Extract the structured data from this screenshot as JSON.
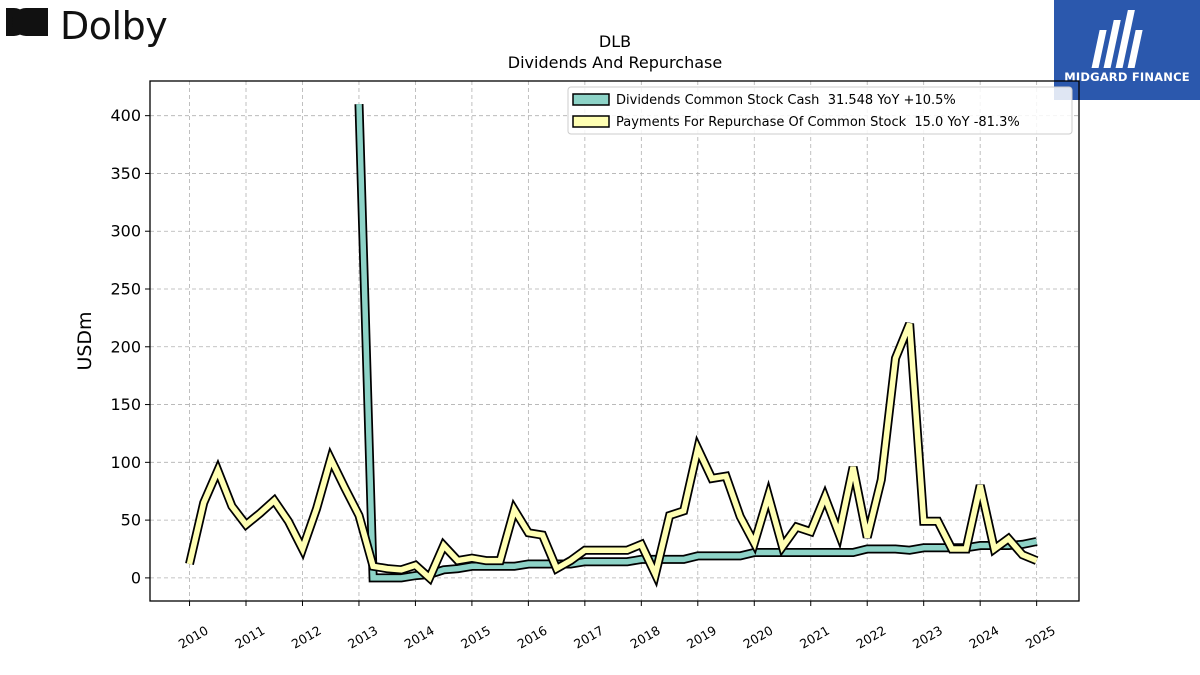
{
  "brand": {
    "name": "Dolby",
    "partner": "MIDGARD FINANCE"
  },
  "colors": {
    "dividends": "#8dd3c7",
    "repurchase": "#ffffb3",
    "outline": "#000000",
    "grid": "#b0b0b0",
    "partner_bg": "#2b58ad"
  },
  "chart_data": {
    "type": "line",
    "title": "DLB",
    "subtitle": "Dividends And Repurchase",
    "ylabel": "USDm",
    "xlabel": "",
    "xlim": [
      2009.3,
      2025.75
    ],
    "ylim": [
      -20,
      430
    ],
    "yticks": [
      0,
      50,
      100,
      150,
      200,
      250,
      300,
      350,
      400
    ],
    "xticks": [
      2010,
      2011,
      2012,
      2013,
      2014,
      2015,
      2016,
      2017,
      2018,
      2019,
      2020,
      2021,
      2022,
      2023,
      2024,
      2025
    ],
    "grid": true,
    "legend_position": "top-right",
    "series": [
      {
        "name": "Dividends Common Stock Cash  31.548 YoY +10.5%",
        "color": "#8dd3c7",
        "points": [
          [
            2013.0,
            410
          ],
          [
            2013.25,
            0
          ],
          [
            2013.5,
            0
          ],
          [
            2013.75,
            0
          ],
          [
            2014.0,
            2
          ],
          [
            2014.25,
            3
          ],
          [
            2014.5,
            7
          ],
          [
            2014.75,
            8
          ],
          [
            2015.0,
            10
          ],
          [
            2015.25,
            10
          ],
          [
            2015.5,
            10
          ],
          [
            2015.75,
            10
          ],
          [
            2016.0,
            12
          ],
          [
            2016.25,
            12
          ],
          [
            2016.5,
            12
          ],
          [
            2016.75,
            12
          ],
          [
            2017.0,
            14
          ],
          [
            2017.25,
            14
          ],
          [
            2017.5,
            14
          ],
          [
            2017.75,
            14
          ],
          [
            2018.0,
            16
          ],
          [
            2018.25,
            16
          ],
          [
            2018.5,
            16
          ],
          [
            2018.75,
            16
          ],
          [
            2019.0,
            19
          ],
          [
            2019.25,
            19
          ],
          [
            2019.5,
            19
          ],
          [
            2019.75,
            19
          ],
          [
            2020.0,
            22
          ],
          [
            2020.25,
            22
          ],
          [
            2020.5,
            22
          ],
          [
            2020.75,
            22
          ],
          [
            2021.0,
            22
          ],
          [
            2021.25,
            22
          ],
          [
            2021.5,
            22
          ],
          [
            2021.75,
            22
          ],
          [
            2022.0,
            25
          ],
          [
            2022.25,
            25
          ],
          [
            2022.5,
            25
          ],
          [
            2022.75,
            24
          ],
          [
            2023.0,
            26
          ],
          [
            2023.25,
            26
          ],
          [
            2023.5,
            26
          ],
          [
            2023.75,
            26
          ],
          [
            2024.0,
            28
          ],
          [
            2024.25,
            28
          ],
          [
            2024.5,
            28
          ],
          [
            2024.75,
            29
          ],
          [
            2025.0,
            31.5
          ]
        ]
      },
      {
        "name": "Payments For Repurchase Of Common Stock  15.0 YoY -81.3%",
        "color": "#ffffb3",
        "points": [
          [
            2010.0,
            12
          ],
          [
            2010.25,
            65
          ],
          [
            2010.5,
            93
          ],
          [
            2010.75,
            62
          ],
          [
            2011.0,
            46
          ],
          [
            2011.25,
            56
          ],
          [
            2011.5,
            67
          ],
          [
            2011.75,
            49
          ],
          [
            2012.0,
            25
          ],
          [
            2012.25,
            60
          ],
          [
            2012.5,
            103
          ],
          [
            2012.75,
            78
          ],
          [
            2013.0,
            54
          ],
          [
            2013.25,
            10
          ],
          [
            2013.5,
            8
          ],
          [
            2013.75,
            7
          ],
          [
            2014.0,
            11
          ],
          [
            2014.25,
            0
          ],
          [
            2014.5,
            28
          ],
          [
            2014.75,
            15
          ],
          [
            2015.0,
            17
          ],
          [
            2015.25,
            15
          ],
          [
            2015.5,
            15
          ],
          [
            2015.75,
            59
          ],
          [
            2016.0,
            39
          ],
          [
            2016.25,
            37
          ],
          [
            2016.5,
            8
          ],
          [
            2016.75,
            15
          ],
          [
            2017.0,
            24
          ],
          [
            2017.25,
            24
          ],
          [
            2017.5,
            24
          ],
          [
            2017.75,
            24
          ],
          [
            2018.0,
            29
          ],
          [
            2018.25,
            3
          ],
          [
            2018.5,
            54
          ],
          [
            2018.75,
            58
          ],
          [
            2019.0,
            112
          ],
          [
            2019.25,
            86
          ],
          [
            2019.5,
            88
          ],
          [
            2019.75,
            53
          ],
          [
            2020.0,
            30
          ],
          [
            2020.25,
            71
          ],
          [
            2020.5,
            27
          ],
          [
            2020.75,
            44
          ],
          [
            2021.0,
            40
          ],
          [
            2021.25,
            70
          ],
          [
            2021.5,
            38
          ],
          [
            2021.75,
            96
          ],
          [
            2022.0,
            35
          ],
          [
            2022.25,
            85
          ],
          [
            2022.5,
            190
          ],
          [
            2022.75,
            220
          ],
          [
            2023.0,
            49
          ],
          [
            2023.25,
            49
          ],
          [
            2023.5,
            25
          ],
          [
            2023.75,
            25
          ],
          [
            2024.0,
            80
          ],
          [
            2024.25,
            25
          ],
          [
            2024.5,
            34
          ],
          [
            2024.75,
            20
          ],
          [
            2025.0,
            15
          ]
        ]
      }
    ]
  }
}
